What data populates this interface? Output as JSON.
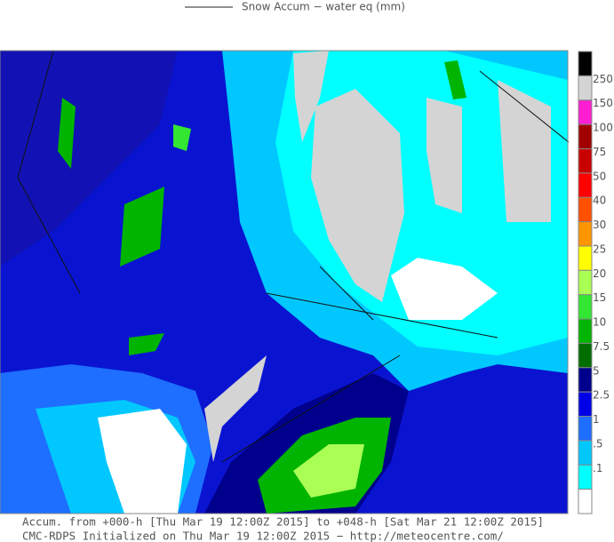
{
  "legend": {
    "title": "Snow Accum − water eq (mm)",
    "top_color": "#000000",
    "bottom_color": "#ffffff",
    "levels": [
      {
        "label": "250",
        "color": "#d4d4d4"
      },
      {
        "label": "150",
        "color": "#ff1ed2"
      },
      {
        "label": "100",
        "color": "#a00000"
      },
      {
        "label": "75",
        "color": "#c80000"
      },
      {
        "label": "50",
        "color": "#ff0000"
      },
      {
        "label": "40",
        "color": "#ff5000"
      },
      {
        "label": "30",
        "color": "#ff9600"
      },
      {
        "label": "25",
        "color": "#ffff00"
      },
      {
        "label": "20",
        "color": "#aaff55"
      },
      {
        "label": "15",
        "color": "#32e632"
      },
      {
        "label": "10",
        "color": "#00b400"
      },
      {
        "label": "7.5",
        "color": "#006e00"
      },
      {
        "label": "5",
        "color": "#00008c"
      },
      {
        "label": "2.5",
        "color": "#0000e6"
      },
      {
        "label": "1",
        "color": "#1e6eff"
      },
      {
        "label": ".5",
        "color": "#00c8ff"
      },
      {
        "label": ".1",
        "color": "#00ffff"
      }
    ]
  },
  "footer": {
    "line1": "Accum. from +000-h [Thu Mar 19 12:00Z 2015] to +048-h [Sat Mar 21 12:00Z 2015]",
    "line2": "CMC-RDPS Initialized on Thu Mar 19 12:00Z 2015 − http://meteocentre.com/"
  }
}
